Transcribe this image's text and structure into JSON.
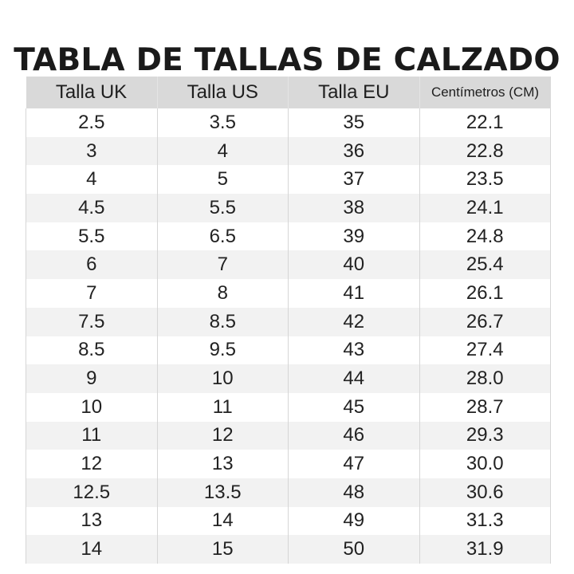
{
  "title": "TABLA DE TALLAS DE CALZADO",
  "table": {
    "headers": [
      "Talla UK",
      "Talla US",
      "Talla EU",
      "Centímetros (CM)"
    ],
    "rows": [
      [
        "2.5",
        "3.5",
        "35",
        "22.1"
      ],
      [
        "3",
        "4",
        "36",
        "22.8"
      ],
      [
        "4",
        "5",
        "37",
        "23.5"
      ],
      [
        "4.5",
        "5.5",
        "38",
        "24.1"
      ],
      [
        "5.5",
        "6.5",
        "39",
        "24.8"
      ],
      [
        "6",
        "7",
        "40",
        "25.4"
      ],
      [
        "7",
        "8",
        "41",
        "26.1"
      ],
      [
        "7.5",
        "8.5",
        "42",
        "26.7"
      ],
      [
        "8.5",
        "9.5",
        "43",
        "27.4"
      ],
      [
        "9",
        "10",
        "44",
        "28.0"
      ],
      [
        "10",
        "11",
        "45",
        "28.7"
      ],
      [
        "11",
        "12",
        "46",
        "29.3"
      ],
      [
        "12",
        "13",
        "47",
        "30.0"
      ],
      [
        "12.5",
        "13.5",
        "48",
        "30.6"
      ],
      [
        "13",
        "14",
        "49",
        "31.3"
      ],
      [
        "14",
        "15",
        "50",
        "31.9"
      ]
    ]
  },
  "colors": {
    "header_background": "#d9d9d9",
    "stripe_background": "#f2f2f2",
    "text": "#1c1c1c"
  }
}
